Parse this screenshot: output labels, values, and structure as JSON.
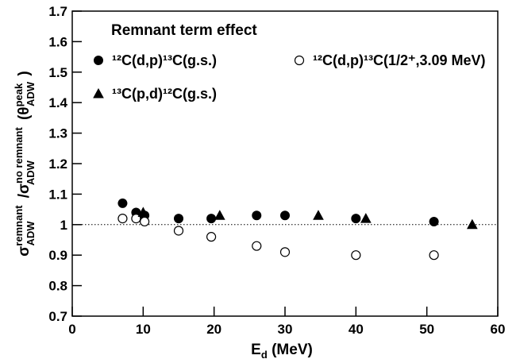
{
  "chart_data": {
    "type": "scatter",
    "annotation": "Remnant term effect",
    "x_label_parts": [
      "E",
      "d",
      " (MeV)"
    ],
    "y_label_parts": [
      "σ",
      "remnant",
      "ADW",
      "/σ",
      "no remnant",
      "ADW",
      "(θ",
      "peak",
      "ADW",
      ")"
    ],
    "xlim": [
      0,
      60
    ],
    "xticks": [
      0,
      10,
      20,
      30,
      40,
      50,
      60
    ],
    "ylim": [
      0.7,
      1.7
    ],
    "yticks": [
      0.7,
      0.8,
      0.9,
      1,
      1.1,
      1.2,
      1.3,
      1.4,
      1.5,
      1.6,
      1.7
    ],
    "reference_line": 1,
    "series": [
      {
        "name": "¹²C(d,p)¹³C(g.s.)",
        "marker": "filled-circle",
        "color": "#000000",
        "x": [
          7.1,
          9,
          10.2,
          15,
          19.6,
          26,
          30,
          40,
          51
        ],
        "values": [
          1.07,
          1.04,
          1.03,
          1.02,
          1.02,
          1.03,
          1.03,
          1.02,
          1.01
        ]
      },
      {
        "name": "¹²C(d,p)¹³C(1/2⁺,3.09 MeV)",
        "marker": "open-circle",
        "color": "#000000",
        "x": [
          7.1,
          9,
          10.2,
          15,
          19.6,
          26,
          30,
          40,
          51
        ],
        "values": [
          1.02,
          1.02,
          1.01,
          0.98,
          0.96,
          0.93,
          0.91,
          0.9,
          0.9
        ]
      },
      {
        "name": "¹³C(p,d)¹²C(g.s.)",
        "marker": "triangle",
        "color": "#000000",
        "x": [
          10,
          20.8,
          34.7,
          41.4,
          56.4
        ],
        "values": [
          1.04,
          1.03,
          1.03,
          1.02,
          1.0
        ]
      }
    ]
  }
}
